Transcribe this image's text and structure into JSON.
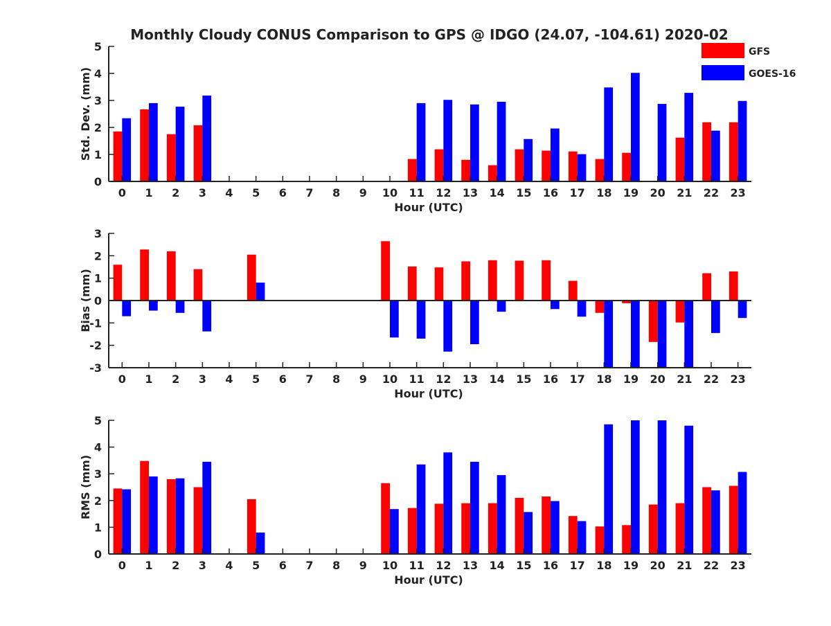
{
  "title": "Monthly Cloudy CONUS Comparison to GPS @ IDGO (24.07, -104.61) 2020-02",
  "legend": {
    "placement": "top-right",
    "entries": [
      {
        "name": "GFS",
        "color": "#ff0000"
      },
      {
        "name": "GOES-16",
        "color": "#0000ff"
      }
    ]
  },
  "chart_data": [
    {
      "type": "bar",
      "xlabel": "Hour (UTC)",
      "ylabel": "Std. Dev. (mm)",
      "ylim": [
        0,
        5
      ],
      "yticks": [
        0,
        1,
        2,
        3,
        4,
        5
      ],
      "categories": [
        "0",
        "1",
        "2",
        "3",
        "4",
        "5",
        "6",
        "7",
        "8",
        "9",
        "10",
        "11",
        "12",
        "13",
        "14",
        "15",
        "16",
        "17",
        "18",
        "19",
        "20",
        "21",
        "22",
        "23"
      ],
      "series": [
        {
          "name": "GFS",
          "color": "#ff0000",
          "values": [
            1.85,
            2.67,
            1.75,
            2.08,
            null,
            null,
            null,
            null,
            null,
            null,
            null,
            0.83,
            1.19,
            0.8,
            0.6,
            1.19,
            1.14,
            1.11,
            0.83,
            1.06,
            null,
            1.62,
            2.19,
            2.19
          ]
        },
        {
          "name": "GOES-16",
          "color": "#0000ff",
          "values": [
            2.34,
            2.9,
            2.77,
            3.18,
            null,
            null,
            null,
            null,
            null,
            null,
            null,
            2.9,
            3.02,
            2.85,
            2.95,
            1.57,
            1.96,
            1.01,
            3.48,
            4.02,
            2.87,
            3.28,
            1.88,
            2.98
          ]
        }
      ]
    },
    {
      "type": "bar",
      "xlabel": "Hour (UTC)",
      "ylabel": "Bias (mm)",
      "ylim": [
        -3,
        3
      ],
      "yticks": [
        -3,
        -2,
        -1,
        0,
        1,
        2,
        3
      ],
      "categories": [
        "0",
        "1",
        "2",
        "3",
        "4",
        "5",
        "6",
        "7",
        "8",
        "9",
        "10",
        "11",
        "12",
        "13",
        "14",
        "15",
        "16",
        "17",
        "18",
        "19",
        "20",
        "21",
        "22",
        "23"
      ],
      "series": [
        {
          "name": "GFS",
          "color": "#ff0000",
          "values": [
            1.6,
            2.28,
            2.2,
            1.4,
            null,
            2.05,
            null,
            null,
            null,
            null,
            2.65,
            1.52,
            1.48,
            1.75,
            1.8,
            1.78,
            1.8,
            0.88,
            -0.55,
            -0.12,
            -1.85,
            -0.98,
            1.22,
            1.3
          ]
        },
        {
          "name": "GOES-16",
          "color": "#0000ff",
          "values": [
            -0.7,
            -0.45,
            -0.55,
            -1.38,
            null,
            0.8,
            null,
            null,
            null,
            null,
            -1.65,
            -1.7,
            -2.28,
            -1.95,
            -0.5,
            null,
            -0.38,
            -0.72,
            -3.0,
            -3.0,
            -3.0,
            -3.0,
            -1.45,
            -0.78
          ]
        }
      ]
    },
    {
      "type": "bar",
      "xlabel": "Hour (UTC)",
      "ylabel": "RMS (mm)",
      "ylim": [
        0,
        5
      ],
      "yticks": [
        0,
        1,
        2,
        3,
        4,
        5
      ],
      "categories": [
        "0",
        "1",
        "2",
        "3",
        "4",
        "5",
        "6",
        "7",
        "8",
        "9",
        "10",
        "11",
        "12",
        "13",
        "14",
        "15",
        "16",
        "17",
        "18",
        "19",
        "20",
        "21",
        "22",
        "23"
      ],
      "series": [
        {
          "name": "GFS",
          "color": "#ff0000",
          "values": [
            2.45,
            3.48,
            2.8,
            2.5,
            null,
            2.05,
            null,
            null,
            null,
            null,
            2.65,
            1.72,
            1.88,
            1.9,
            1.9,
            2.1,
            2.15,
            1.42,
            1.03,
            1.08,
            1.85,
            1.9,
            2.5,
            2.55
          ]
        },
        {
          "name": "GOES-16",
          "color": "#0000ff",
          "values": [
            2.42,
            2.9,
            2.83,
            3.45,
            null,
            0.8,
            null,
            null,
            null,
            null,
            1.68,
            3.35,
            3.8,
            3.45,
            2.95,
            1.57,
            1.98,
            1.23,
            4.85,
            5.0,
            5.0,
            4.8,
            2.38,
            3.07
          ]
        }
      ]
    }
  ]
}
